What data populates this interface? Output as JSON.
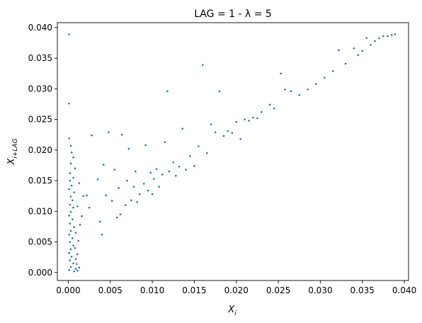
{
  "chart_data": {
    "type": "scatter",
    "title": "LAG = 1 - λ = 5",
    "xlabel_base": "X",
    "xlabel_sub": "i",
    "ylabel_base": "X",
    "ylabel_sub": "i+LAG",
    "xlim": [
      -0.0013,
      0.0405
    ],
    "ylim": [
      -0.0013,
      0.0408
    ],
    "xticks": [
      0.0,
      0.005,
      0.01,
      0.015,
      0.02,
      0.025,
      0.03,
      0.035,
      0.04
    ],
    "xtick_labels": [
      "0.000",
      "0.005",
      "0.010",
      "0.015",
      "0.020",
      "0.025",
      "0.030",
      "0.035",
      "0.040"
    ],
    "yticks": [
      0.0,
      0.005,
      0.01,
      0.015,
      0.02,
      0.025,
      0.03,
      0.035,
      0.04
    ],
    "ytick_labels": [
      "0.000",
      "0.005",
      "0.010",
      "0.015",
      "0.020",
      "0.025",
      "0.030",
      "0.035",
      "0.040"
    ],
    "grid": false,
    "marker_color": "#1f77b4",
    "series": [
      {
        "points": [
          [
            0.0001,
            0.0389
          ],
          [
            0.0001,
            0.0276
          ],
          [
            0.0001,
            0.0219
          ],
          [
            0.0003,
            0.0207
          ],
          [
            0.0004,
            0.0196
          ],
          [
            0.0006,
            0.0188
          ],
          [
            0.0003,
            0.0178
          ],
          [
            0.0008,
            0.017
          ],
          [
            0.0002,
            0.0162
          ],
          [
            0.0006,
            0.0155
          ],
          [
            0.0002,
            0.015
          ],
          [
            0.0004,
            0.0142
          ],
          [
            0.0001,
            0.0136
          ],
          [
            0.0007,
            0.0131
          ],
          [
            0.0003,
            0.0124
          ],
          [
            0.0005,
            0.0118
          ],
          [
            0.0002,
            0.0111
          ],
          [
            0.0006,
            0.0106
          ],
          [
            0.0003,
            0.0099
          ],
          [
            0.0001,
            0.0093
          ],
          [
            0.0005,
            0.0087
          ],
          [
            0.0002,
            0.008
          ],
          [
            0.0007,
            0.0074
          ],
          [
            0.0003,
            0.0068
          ],
          [
            0.0001,
            0.0062
          ],
          [
            0.0005,
            0.0056
          ],
          [
            0.0002,
            0.005
          ],
          [
            0.0006,
            0.0044
          ],
          [
            0.0003,
            0.0038
          ],
          [
            0.0001,
            0.0032
          ],
          [
            0.0004,
            0.0026
          ],
          [
            0.0002,
            0.002
          ],
          [
            0.0006,
            0.0015
          ],
          [
            0.0003,
            0.0009
          ],
          [
            0.0001,
            0.0004
          ],
          [
            0.0007,
            0.0002
          ],
          [
            0.0009,
            0.0006
          ],
          [
            0.0011,
            0.0003
          ],
          [
            0.0013,
            0.0008
          ],
          [
            0.001,
            0.0014
          ],
          [
            0.0009,
            0.0022
          ],
          [
            0.0011,
            0.003
          ],
          [
            0.0008,
            0.004
          ],
          [
            0.0012,
            0.0052
          ],
          [
            0.0009,
            0.0065
          ],
          [
            0.0014,
            0.0078
          ],
          [
            0.0016,
            0.0092
          ],
          [
            0.0011,
            0.0108
          ],
          [
            0.0018,
            0.0125
          ],
          [
            0.0013,
            0.0146
          ],
          [
            0.0022,
            0.0126
          ],
          [
            0.0025,
            0.0106
          ],
          [
            0.0028,
            0.0224
          ],
          [
            0.0035,
            0.0152
          ],
          [
            0.0038,
            0.0083
          ],
          [
            0.004,
            0.0062
          ],
          [
            0.0042,
            0.0176
          ],
          [
            0.0045,
            0.0126
          ],
          [
            0.0048,
            0.0229
          ],
          [
            0.0052,
            0.0117
          ],
          [
            0.0055,
            0.0168
          ],
          [
            0.0058,
            0.009
          ],
          [
            0.006,
            0.0138
          ],
          [
            0.0062,
            0.0095
          ],
          [
            0.0064,
            0.0225
          ],
          [
            0.0068,
            0.011
          ],
          [
            0.007,
            0.015
          ],
          [
            0.0072,
            0.0202
          ],
          [
            0.0075,
            0.0118
          ],
          [
            0.0078,
            0.014
          ],
          [
            0.008,
            0.0165
          ],
          [
            0.0082,
            0.0115
          ],
          [
            0.0085,
            0.0128
          ],
          [
            0.009,
            0.0145
          ],
          [
            0.0092,
            0.0208
          ],
          [
            0.0095,
            0.0134
          ],
          [
            0.0098,
            0.0163
          ],
          [
            0.01,
            0.0128
          ],
          [
            0.0102,
            0.0153
          ],
          [
            0.0105,
            0.0169
          ],
          [
            0.0108,
            0.014
          ],
          [
            0.0112,
            0.016
          ],
          [
            0.0115,
            0.0213
          ],
          [
            0.0118,
            0.0296
          ],
          [
            0.012,
            0.0165
          ],
          [
            0.0125,
            0.018
          ],
          [
            0.0128,
            0.0158
          ],
          [
            0.0132,
            0.0173
          ],
          [
            0.0136,
            0.0235
          ],
          [
            0.014,
            0.0168
          ],
          [
            0.0145,
            0.019
          ],
          [
            0.015,
            0.0174
          ],
          [
            0.0155,
            0.0206
          ],
          [
            0.016,
            0.0339
          ],
          [
            0.0165,
            0.0195
          ],
          [
            0.017,
            0.0242
          ],
          [
            0.0175,
            0.0229
          ],
          [
            0.018,
            0.0296
          ],
          [
            0.0185,
            0.0223
          ],
          [
            0.019,
            0.0231
          ],
          [
            0.0195,
            0.0228
          ],
          [
            0.02,
            0.0246
          ],
          [
            0.0205,
            0.0218
          ],
          [
            0.021,
            0.025
          ],
          [
            0.0215,
            0.0248
          ],
          [
            0.022,
            0.0253
          ],
          [
            0.0225,
            0.0252
          ],
          [
            0.023,
            0.0262
          ],
          [
            0.024,
            0.0274
          ],
          [
            0.0245,
            0.0268
          ],
          [
            0.0253,
            0.0325
          ],
          [
            0.0258,
            0.0299
          ],
          [
            0.0265,
            0.0296
          ],
          [
            0.0275,
            0.029
          ],
          [
            0.0285,
            0.0299
          ],
          [
            0.0295,
            0.0308
          ],
          [
            0.0305,
            0.0318
          ],
          [
            0.0315,
            0.0329
          ],
          [
            0.0322,
            0.0363
          ],
          [
            0.033,
            0.0341
          ],
          [
            0.034,
            0.0366
          ],
          [
            0.0345,
            0.0355
          ],
          [
            0.035,
            0.0362
          ],
          [
            0.0355,
            0.0383
          ],
          [
            0.036,
            0.0372
          ],
          [
            0.0365,
            0.0378
          ],
          [
            0.037,
            0.0383
          ],
          [
            0.0375,
            0.0386
          ],
          [
            0.038,
            0.0386
          ],
          [
            0.0385,
            0.0388
          ],
          [
            0.0389,
            0.0389
          ]
        ]
      }
    ]
  }
}
